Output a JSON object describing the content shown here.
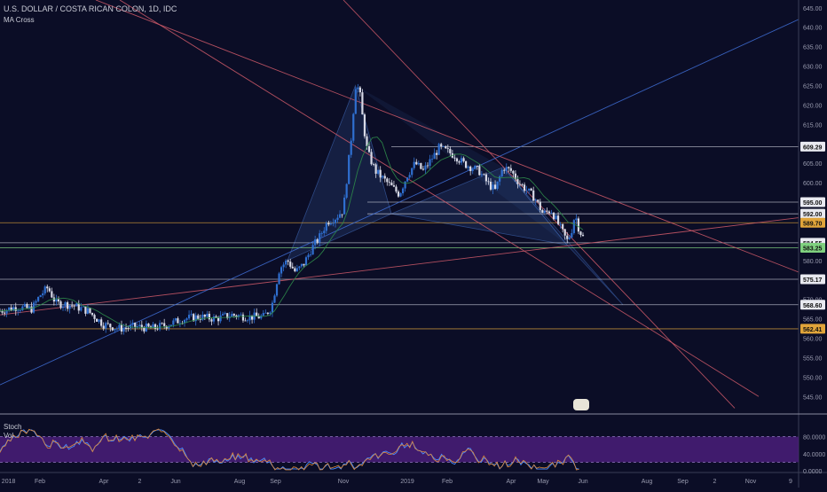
{
  "header": {
    "title": "U.S. DOLLAR / COSTA RICAN COLON, 1D, IDC",
    "study": "MA Cross"
  },
  "indicators": {
    "stoch": "Stoch",
    "vol": "Vol"
  },
  "colors": {
    "background": "#0b0d26",
    "candle_up": "#2f6fd0",
    "candle_down": "#d7d9e6",
    "hline_white": "#c7c9d6",
    "hline_orange": "#e0a43a",
    "trend_red": "#d05a6a",
    "trend_blue": "#3f6fd6",
    "pattern_fill": "#3a5fa8",
    "stoch_band": "#4a1f7a"
  },
  "chart_data": {
    "type": "candlestick",
    "y_range": [
      540.5,
      647.0
    ],
    "x_axis_labels": [
      "2018",
      "Feb",
      "Apr",
      "2",
      "Jun",
      "Aug",
      "Sep",
      "Nov",
      "2019",
      "Feb",
      "Apr",
      "May",
      "Jun",
      "Aug",
      "Sep",
      "2",
      "Nov",
      "9"
    ],
    "y_axis_ticks": [
      "645.00",
      "640.00",
      "635.00",
      "630.00",
      "625.00",
      "620.00",
      "615.00",
      "610.00",
      "605.00",
      "600.00",
      "595.00",
      "590.00",
      "585.00",
      "580.00",
      "575.00",
      "570.00",
      "565.00",
      "560.00",
      "555.00",
      "550.00",
      "545.00"
    ],
    "price_labels": [
      {
        "value": 609.29,
        "text": "609.29",
        "style": "white"
      },
      {
        "value": 595.0,
        "text": "595.00",
        "style": "white"
      },
      {
        "value": 592.0,
        "text": "592.00",
        "style": "white"
      },
      {
        "value": 589.7,
        "text": "589.70",
        "style": "orange"
      },
      {
        "value": 584.55,
        "text": "584.55",
        "style": "white"
      },
      {
        "value": 583.25,
        "text": "583.25",
        "style": "green"
      },
      {
        "value": 575.17,
        "text": "575.17",
        "style": "white"
      },
      {
        "value": 568.6,
        "text": "568.60",
        "style": "white"
      },
      {
        "value": 562.41,
        "text": "562.41",
        "style": "orange"
      }
    ],
    "price_path": [
      [
        0,
        567
      ],
      [
        0.02,
        568
      ],
      [
        0.04,
        567.5
      ],
      [
        0.05,
        571
      ],
      [
        0.06,
        573
      ],
      [
        0.07,
        569
      ],
      [
        0.09,
        568.5
      ],
      [
        0.11,
        567
      ],
      [
        0.13,
        563.5
      ],
      [
        0.15,
        562.5
      ],
      [
        0.17,
        563
      ],
      [
        0.19,
        562.5
      ],
      [
        0.21,
        563.5
      ],
      [
        0.23,
        565
      ],
      [
        0.25,
        565.5
      ],
      [
        0.27,
        565
      ],
      [
        0.29,
        566
      ],
      [
        0.31,
        565.5
      ],
      [
        0.33,
        565.5
      ],
      [
        0.34,
        568
      ],
      [
        0.35,
        578
      ],
      [
        0.36,
        580
      ],
      [
        0.37,
        577
      ],
      [
        0.38,
        579
      ],
      [
        0.39,
        583
      ],
      [
        0.4,
        586
      ],
      [
        0.41,
        590
      ],
      [
        0.42,
        591
      ],
      [
        0.43,
        593
      ],
      [
        0.44,
        612
      ],
      [
        0.445,
        625
      ],
      [
        0.45,
        624
      ],
      [
        0.455,
        615
      ],
      [
        0.46,
        608
      ],
      [
        0.47,
        603
      ],
      [
        0.48,
        601
      ],
      [
        0.49,
        599
      ],
      [
        0.5,
        597
      ],
      [
        0.51,
        602
      ],
      [
        0.52,
        605
      ],
      [
        0.53,
        603
      ],
      [
        0.54,
        606
      ],
      [
        0.55,
        609
      ],
      [
        0.56,
        608
      ],
      [
        0.57,
        607
      ],
      [
        0.58,
        605
      ],
      [
        0.59,
        604
      ],
      [
        0.6,
        603
      ],
      [
        0.61,
        600
      ],
      [
        0.62,
        598
      ],
      [
        0.63,
        604
      ],
      [
        0.64,
        603
      ],
      [
        0.65,
        600
      ],
      [
        0.66,
        598
      ],
      [
        0.67,
        596
      ],
      [
        0.68,
        592
      ],
      [
        0.69,
        593
      ],
      [
        0.7,
        589
      ],
      [
        0.71,
        585
      ],
      [
        0.715,
        587
      ],
      [
        0.72,
        592
      ],
      [
        0.725,
        588
      ],
      [
        0.73,
        586
      ]
    ],
    "stoch_band": [
      20,
      80
    ],
    "stoch_labels": [
      "80.0000",
      "40.0000",
      "0.0000"
    ]
  }
}
